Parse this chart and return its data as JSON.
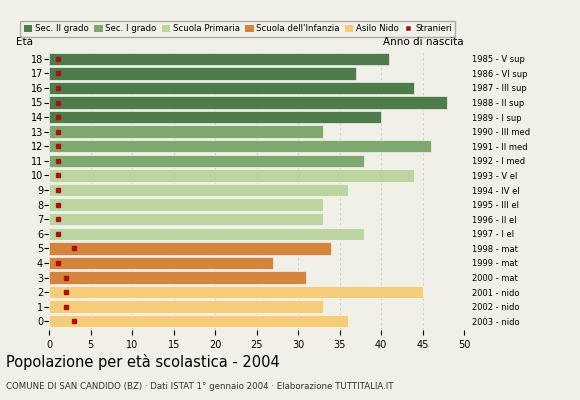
{
  "ages": [
    18,
    17,
    16,
    15,
    14,
    13,
    12,
    11,
    10,
    9,
    8,
    7,
    6,
    5,
    4,
    3,
    2,
    1,
    0
  ],
  "years": [
    "1985 - V sup",
    "1986 - VI sup",
    "1987 - III sup",
    "1988 - II sup",
    "1989 - I sup",
    "1990 - III med",
    "1991 - II med",
    "1992 - I med",
    "1993 - V el",
    "1994 - IV el",
    "1995 - III el",
    "1996 - II el",
    "1997 - I el",
    "1998 - mat",
    "1999 - mat",
    "2000 - mat",
    "2001 - nido",
    "2002 - nido",
    "2003 - nido"
  ],
  "values": [
    41,
    37,
    44,
    48,
    40,
    33,
    46,
    38,
    44,
    36,
    33,
    33,
    38,
    34,
    27,
    31,
    45,
    33,
    36
  ],
  "stranieri": [
    1,
    1,
    1,
    1,
    1,
    1,
    1,
    1,
    1,
    1,
    1,
    1,
    1,
    3,
    1,
    2,
    2,
    2,
    3
  ],
  "bar_colors": [
    "#4d7c4a",
    "#4d7c4a",
    "#4d7c4a",
    "#4d7c4a",
    "#4d7c4a",
    "#7fa86e",
    "#7fa86e",
    "#7fa86e",
    "#bcd4a0",
    "#bcd4a0",
    "#bcd4a0",
    "#bcd4a0",
    "#bcd4a0",
    "#d4843c",
    "#d4843c",
    "#d4843c",
    "#f5cc7a",
    "#f5cc7a",
    "#f5cc7a"
  ],
  "legend_labels": [
    "Sec. II grado",
    "Sec. I grado",
    "Scuola Primaria",
    "Scuola dell'Infanzia",
    "Asilo Nido",
    "Stranieri"
  ],
  "legend_colors": [
    "#4d7c4a",
    "#7fa86e",
    "#bcd4a0",
    "#d4843c",
    "#f5cc7a",
    "#aa2222"
  ],
  "title": "Popolazione per età scolastica - 2004",
  "subtitle": "COMUNE DI SAN CANDIDO (BZ) · Dati ISTAT 1° gennaio 2004 · Elaborazione TUTTITALIA.IT",
  "label_eta": "Età",
  "label_anno": "Anno di nascita",
  "xlim": [
    0,
    50
  ],
  "bg_color": "#f0f0e8",
  "grid_color": "#cccccc",
  "stranieri_color": "#aa1111"
}
